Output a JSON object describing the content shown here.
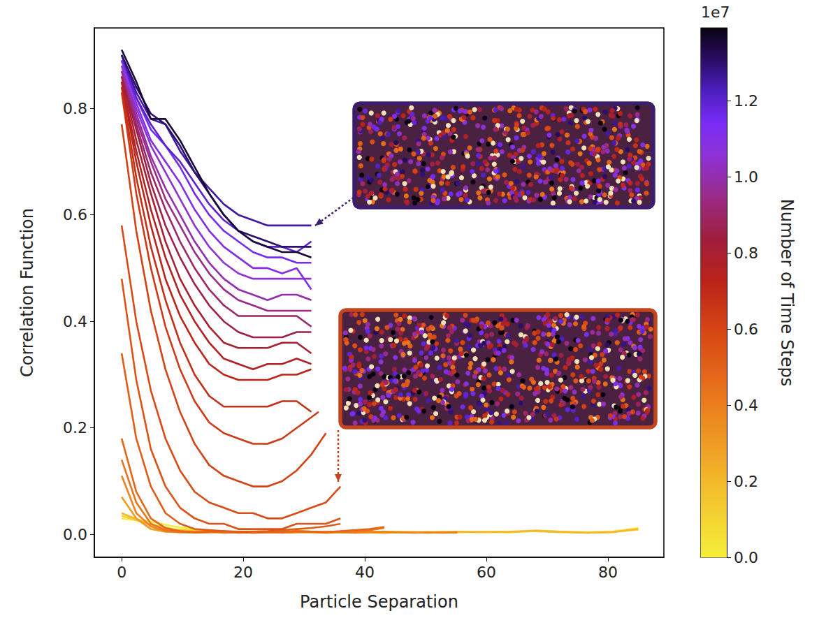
{
  "chart_data": {
    "type": "line",
    "xlabel": "Particle Separation",
    "ylabel": "Correlation Function",
    "xlim": [
      -4.5,
      89.2
    ],
    "xticks": [
      0,
      20,
      40,
      60,
      80
    ],
    "ylim": [
      -0.043,
      0.951
    ],
    "yticks": [
      {
        "value": 0,
        "label": "0.0"
      },
      {
        "value": 0.2,
        "label": "0.2"
      },
      {
        "value": 0.4,
        "label": "0.4"
      },
      {
        "value": 0.6,
        "label": "0.6"
      },
      {
        "value": 0.8,
        "label": "0.8"
      }
    ],
    "grid": false,
    "colorbar": {
      "label": "Number of Time Steps",
      "offset_label": "1e7",
      "lim": [
        0,
        13910000
      ],
      "ticks": [
        {
          "value": 0,
          "label": "0.0"
        },
        {
          "value": 2000000,
          "label": "0.2"
        },
        {
          "value": 4000000,
          "label": "0.4"
        },
        {
          "value": 6000000,
          "label": "0.6"
        },
        {
          "value": 8000000,
          "label": "0.8"
        },
        {
          "value": 10000000,
          "label": "1.0"
        },
        {
          "value": 12000000,
          "label": "1.2"
        }
      ]
    },
    "series": [
      {
        "time_step": 0,
        "x": [
          0,
          4.25,
          8.5,
          12.75,
          17,
          21.25,
          25.5,
          29.75,
          34,
          38.25,
          42.5,
          46.75,
          51,
          55.25,
          59.5,
          63.75,
          68,
          72.25,
          76.5,
          80.75,
          85
        ],
        "values": [
          0.03,
          0.025,
          0.015,
          0.008,
          0.005,
          0.004,
          0.005,
          0.006,
          0.004,
          0.004,
          0.005,
          0.004,
          0.004,
          0.005,
          0.005,
          0.004,
          0.007,
          0.005,
          0.004,
          0.005,
          0.012
        ]
      },
      {
        "time_step": 1000000,
        "x": [
          0,
          4.25,
          8.5,
          12.75,
          17,
          21.25,
          25.5,
          29.75,
          34,
          38.25,
          42.5,
          46.75,
          51,
          55.25,
          59.5,
          63.75,
          68,
          72.25,
          76.5,
          80.75,
          85
        ],
        "values": [
          0.035,
          0.02,
          0.01,
          0.006,
          0.005,
          0.004,
          0.005,
          0.004,
          0.003,
          0.004,
          0.005,
          0.004,
          0.003,
          0.004,
          0.005,
          0.004,
          0.006,
          0.004,
          0.003,
          0.005,
          0.009
        ]
      },
      {
        "time_step": 2000000,
        "x": [
          0,
          4.25,
          8.5,
          12.75,
          17,
          21.25,
          25.5,
          29.75,
          34,
          38.25,
          42.5,
          46.75,
          51,
          55.25,
          59.5,
          63.75,
          68,
          72.25,
          76.5,
          80.75,
          85
        ],
        "values": [
          0.04,
          0.02,
          0.008,
          0.005,
          0.004,
          0.005,
          0.004,
          0.004,
          0.005,
          0.004,
          0.003,
          0.004,
          0.004,
          0.005,
          0.004,
          0.005,
          0.007,
          0.005,
          0.003,
          0.004,
          0.01
        ]
      },
      {
        "time_step": 3000000,
        "x": [
          0,
          2.4,
          4.8,
          7.2,
          9.6,
          12,
          14.4,
          16.8,
          19.2,
          21.6,
          24,
          26.4,
          28.8,
          31.2,
          33.6,
          36,
          38.4,
          40.8,
          43.2,
          45.6,
          48,
          50.4,
          52.8,
          55.2
        ],
        "values": [
          0.07,
          0.03,
          0.01,
          0.005,
          0.004,
          0.003,
          0.004,
          0.005,
          0.004,
          0.003,
          0.004,
          0.004,
          0.005,
          0.004,
          0.003,
          0.004,
          0.004,
          0.005,
          0.003,
          0.004,
          0.004,
          0.003,
          0.004,
          0.003
        ]
      },
      {
        "time_step": 3800000,
        "x": [
          0,
          2.4,
          4.8,
          7.2,
          9.6,
          12,
          14.4,
          16.8,
          19.2,
          21.6,
          24,
          26.4,
          28.8,
          31.2,
          33.6,
          36,
          38.4,
          40.8,
          43.2,
          45.6,
          48,
          50.4,
          52.8,
          55.2
        ],
        "values": [
          0.11,
          0.04,
          0.015,
          0.006,
          0.004,
          0.004,
          0.005,
          0.003,
          0.004,
          0.005,
          0.004,
          0.003,
          0.004,
          0.005,
          0.004,
          0.004,
          0.003,
          0.004,
          0.005,
          0.004,
          0.003,
          0.004,
          0.003,
          0.004
        ]
      },
      {
        "time_step": 4300000,
        "x": [
          0,
          2.4,
          4.8,
          7.2,
          9.6,
          12,
          14.4,
          16.8,
          19.2,
          21.6,
          24,
          26.4,
          28.8,
          31.2,
          33.6,
          36,
          38.4,
          40.8,
          43.2
        ],
        "values": [
          0.14,
          0.06,
          0.02,
          0.008,
          0.005,
          0.004,
          0.004,
          0.005,
          0.003,
          0.004,
          0.005,
          0.004,
          0.006,
          0.005,
          0.004,
          0.005,
          0.006,
          0.008,
          0.012
        ]
      },
      {
        "time_step": 4800000,
        "x": [
          0,
          2.4,
          4.8,
          7.2,
          9.6,
          12,
          14.4,
          16.8,
          19.2,
          21.6,
          24,
          26.4,
          28.8,
          31.2,
          33.6,
          36,
          38.4,
          40.8,
          43.2
        ],
        "values": [
          0.18,
          0.08,
          0.03,
          0.012,
          0.006,
          0.004,
          0.005,
          0.006,
          0.004,
          0.003,
          0.004,
          0.005,
          0.006,
          0.005,
          0.004,
          0.006,
          0.008,
          0.01,
          0.014
        ]
      },
      {
        "time_step": 5200000,
        "x": [
          0,
          2.4,
          4.8,
          7.2,
          9.6,
          12,
          14.4,
          16.8,
          19.2,
          21.6,
          24,
          26.4,
          28.8,
          31.2,
          33.6,
          36
        ],
        "values": [
          0.34,
          0.18,
          0.09,
          0.04,
          0.02,
          0.01,
          0.008,
          0.006,
          0.005,
          0.005,
          0.006,
          0.008,
          0.01,
          0.012,
          0.015,
          0.02
        ]
      },
      {
        "time_step": 5500000,
        "x": [
          0,
          2.4,
          4.8,
          7.2,
          9.6,
          12,
          14.4,
          16.8,
          19.2,
          21.6,
          24,
          26.4,
          28.8,
          31.2,
          33.6,
          36
        ],
        "values": [
          0.48,
          0.29,
          0.16,
          0.09,
          0.05,
          0.03,
          0.02,
          0.02,
          0.01,
          0.01,
          0.01,
          0.01,
          0.02,
          0.02,
          0.02,
          0.03
        ]
      },
      {
        "time_step": 5800000,
        "x": [
          0,
          2.4,
          4.8,
          7.2,
          9.6,
          12,
          14.4,
          16.8,
          19.2,
          21.6,
          24,
          26.4,
          28.8,
          31.2,
          33.6,
          36
        ],
        "values": [
          0.58,
          0.4,
          0.27,
          0.18,
          0.12,
          0.08,
          0.06,
          0.05,
          0.04,
          0.04,
          0.03,
          0.03,
          0.04,
          0.05,
          0.06,
          0.09
        ]
      },
      {
        "time_step": 6100000,
        "x": [
          0,
          2.4,
          4.8,
          7.2,
          9.6,
          12,
          14.4,
          16.8,
          19.2,
          21.6,
          24,
          26.4,
          28.8,
          31.2,
          33.6
        ],
        "values": [
          0.77,
          0.57,
          0.42,
          0.31,
          0.23,
          0.17,
          0.13,
          0.11,
          0.1,
          0.09,
          0.09,
          0.1,
          0.12,
          0.15,
          0.19
        ]
      },
      {
        "time_step": 6400000,
        "x": [
          0,
          2.4,
          4.8,
          7.2,
          9.6,
          12,
          14.4,
          16.8,
          19.2,
          21.6,
          24,
          26.4,
          28.8,
          31.2,
          32.4
        ],
        "values": [
          0.83,
          0.64,
          0.5,
          0.39,
          0.31,
          0.25,
          0.21,
          0.19,
          0.18,
          0.17,
          0.17,
          0.18,
          0.2,
          0.22,
          0.23
        ]
      },
      {
        "time_step": 6800000,
        "x": [
          0,
          2.4,
          4.8,
          7.2,
          9.6,
          12,
          14.4,
          16.8,
          19.2,
          21.6,
          24,
          26.4,
          28.8,
          31.2
        ],
        "values": [
          0.84,
          0.67,
          0.54,
          0.44,
          0.36,
          0.3,
          0.26,
          0.24,
          0.24,
          0.24,
          0.24,
          0.25,
          0.25,
          0.23
        ]
      },
      {
        "time_step": 7200000,
        "x": [
          0,
          2.4,
          4.8,
          7.2,
          9.6,
          12,
          14.4,
          16.8,
          19.2,
          21.6,
          24,
          26.4,
          28.8,
          31.2
        ],
        "values": [
          0.85,
          0.7,
          0.58,
          0.48,
          0.41,
          0.36,
          0.32,
          0.3,
          0.29,
          0.29,
          0.29,
          0.3,
          0.3,
          0.31
        ]
      },
      {
        "time_step": 7600000,
        "x": [
          0,
          2.4,
          4.8,
          7.2,
          9.6,
          12,
          14.4,
          16.8,
          19.2,
          21.6,
          24,
          26.4,
          28.8,
          31.2
        ],
        "values": [
          0.85,
          0.72,
          0.61,
          0.52,
          0.45,
          0.4,
          0.36,
          0.33,
          0.32,
          0.31,
          0.32,
          0.32,
          0.33,
          0.32
        ]
      },
      {
        "time_step": 8000000,
        "x": [
          0,
          2.4,
          4.8,
          7.2,
          9.6,
          12,
          14.4,
          16.8,
          19.2,
          21.6,
          24,
          26.4,
          28.8,
          31.2
        ],
        "values": [
          0.86,
          0.74,
          0.64,
          0.55,
          0.48,
          0.43,
          0.39,
          0.36,
          0.35,
          0.35,
          0.35,
          0.36,
          0.36,
          0.34
        ]
      },
      {
        "time_step": 8500000,
        "x": [
          0,
          2.4,
          4.8,
          7.2,
          9.6,
          12,
          14.4,
          16.8,
          19.2,
          21.6,
          24,
          26.4,
          28.8,
          31.2
        ],
        "values": [
          0.86,
          0.76,
          0.66,
          0.58,
          0.52,
          0.47,
          0.43,
          0.4,
          0.38,
          0.37,
          0.37,
          0.37,
          0.38,
          0.38
        ]
      },
      {
        "time_step": 9000000,
        "x": [
          0,
          2.4,
          4.8,
          7.2,
          9.6,
          12,
          14.4,
          16.8,
          19.2,
          21.6,
          24,
          26.4,
          28.8,
          31.2
        ],
        "values": [
          0.87,
          0.77,
          0.68,
          0.61,
          0.55,
          0.5,
          0.46,
          0.43,
          0.41,
          0.41,
          0.41,
          0.41,
          0.41,
          0.39
        ]
      },
      {
        "time_step": 9500000,
        "x": [
          0,
          2.4,
          4.8,
          7.2,
          9.6,
          12,
          14.4,
          16.8,
          19.2,
          21.6,
          24,
          26.4,
          28.8,
          31.2
        ],
        "values": [
          0.87,
          0.78,
          0.7,
          0.63,
          0.58,
          0.53,
          0.49,
          0.46,
          0.44,
          0.43,
          0.42,
          0.42,
          0.42,
          0.42
        ]
      },
      {
        "time_step": 10000000,
        "x": [
          0,
          2.4,
          4.8,
          7.2,
          9.6,
          12,
          14.4,
          16.8,
          19.2,
          21.6,
          24,
          26.4,
          28.8,
          31.2
        ],
        "values": [
          0.88,
          0.79,
          0.71,
          0.65,
          0.6,
          0.55,
          0.51,
          0.48,
          0.46,
          0.45,
          0.44,
          0.45,
          0.45,
          0.44
        ]
      },
      {
        "time_step": 10500000,
        "x": [
          0,
          2.4,
          4.8,
          7.2,
          9.6,
          12,
          14.4,
          16.8,
          19.2,
          21.6,
          24,
          26.4,
          28.8,
          31.2
        ],
        "values": [
          0.88,
          0.8,
          0.73,
          0.68,
          0.63,
          0.58,
          0.54,
          0.51,
          0.49,
          0.48,
          0.48,
          0.48,
          0.48,
          0.48
        ]
      },
      {
        "time_step": 11000000,
        "x": [
          0,
          2.4,
          4.8,
          7.2,
          9.6,
          12,
          14.4,
          16.8,
          19.2,
          21.6,
          24,
          26.4,
          28.8,
          31.2
        ],
        "values": [
          0.89,
          0.81,
          0.74,
          0.7,
          0.66,
          0.61,
          0.57,
          0.54,
          0.52,
          0.5,
          0.5,
          0.49,
          0.5,
          0.46
        ]
      },
      {
        "time_step": 11500000,
        "x": [
          0,
          2.4,
          4.8,
          7.2,
          9.6,
          12,
          14.4,
          16.8,
          19.2,
          21.6,
          24,
          26.4,
          28.8,
          31.2
        ],
        "values": [
          0.89,
          0.82,
          0.76,
          0.73,
          0.69,
          0.64,
          0.6,
          0.57,
          0.55,
          0.53,
          0.52,
          0.52,
          0.51,
          0.51
        ]
      },
      {
        "time_step": 12000000,
        "x": [
          0,
          2.4,
          4.8,
          7.2,
          9.6,
          12,
          14.4,
          16.8,
          19.2,
          21.6,
          24,
          26.4,
          28.8,
          31.2
        ],
        "values": [
          0.9,
          0.82,
          0.77,
          0.73,
          0.7,
          0.66,
          0.62,
          0.59,
          0.57,
          0.55,
          0.54,
          0.54,
          0.53,
          0.55
        ]
      },
      {
        "time_step": 12500000,
        "x": [
          0,
          2.4,
          4.8,
          7.2,
          9.6,
          12,
          14.4,
          16.8,
          19.2,
          21.6,
          24,
          26.4,
          28.8,
          31.2
        ],
        "values": [
          0.9,
          0.83,
          0.78,
          0.77,
          0.72,
          0.68,
          0.65,
          0.62,
          0.6,
          0.59,
          0.58,
          0.58,
          0.58,
          0.58
        ]
      },
      {
        "time_step": 13000000,
        "x": [
          0,
          2.4,
          4.8,
          7.2,
          9.6,
          12,
          14.4,
          16.8,
          19.2,
          21.6,
          24,
          26.4,
          28.8,
          31.2
        ],
        "values": [
          0.9,
          0.84,
          0.79,
          0.77,
          0.73,
          0.68,
          0.64,
          0.6,
          0.57,
          0.56,
          0.55,
          0.54,
          0.54,
          0.54
        ]
      },
      {
        "time_step": 13500000,
        "x": [
          0,
          2.4,
          4.8,
          7.2,
          9.6,
          12,
          14.4,
          16.8,
          19.2,
          21.6,
          24,
          26.4,
          28.8,
          31.2
        ],
        "values": [
          0.91,
          0.85,
          0.78,
          0.78,
          0.74,
          0.69,
          0.64,
          0.6,
          0.57,
          0.55,
          0.54,
          0.53,
          0.53,
          0.52
        ]
      }
    ]
  }
}
